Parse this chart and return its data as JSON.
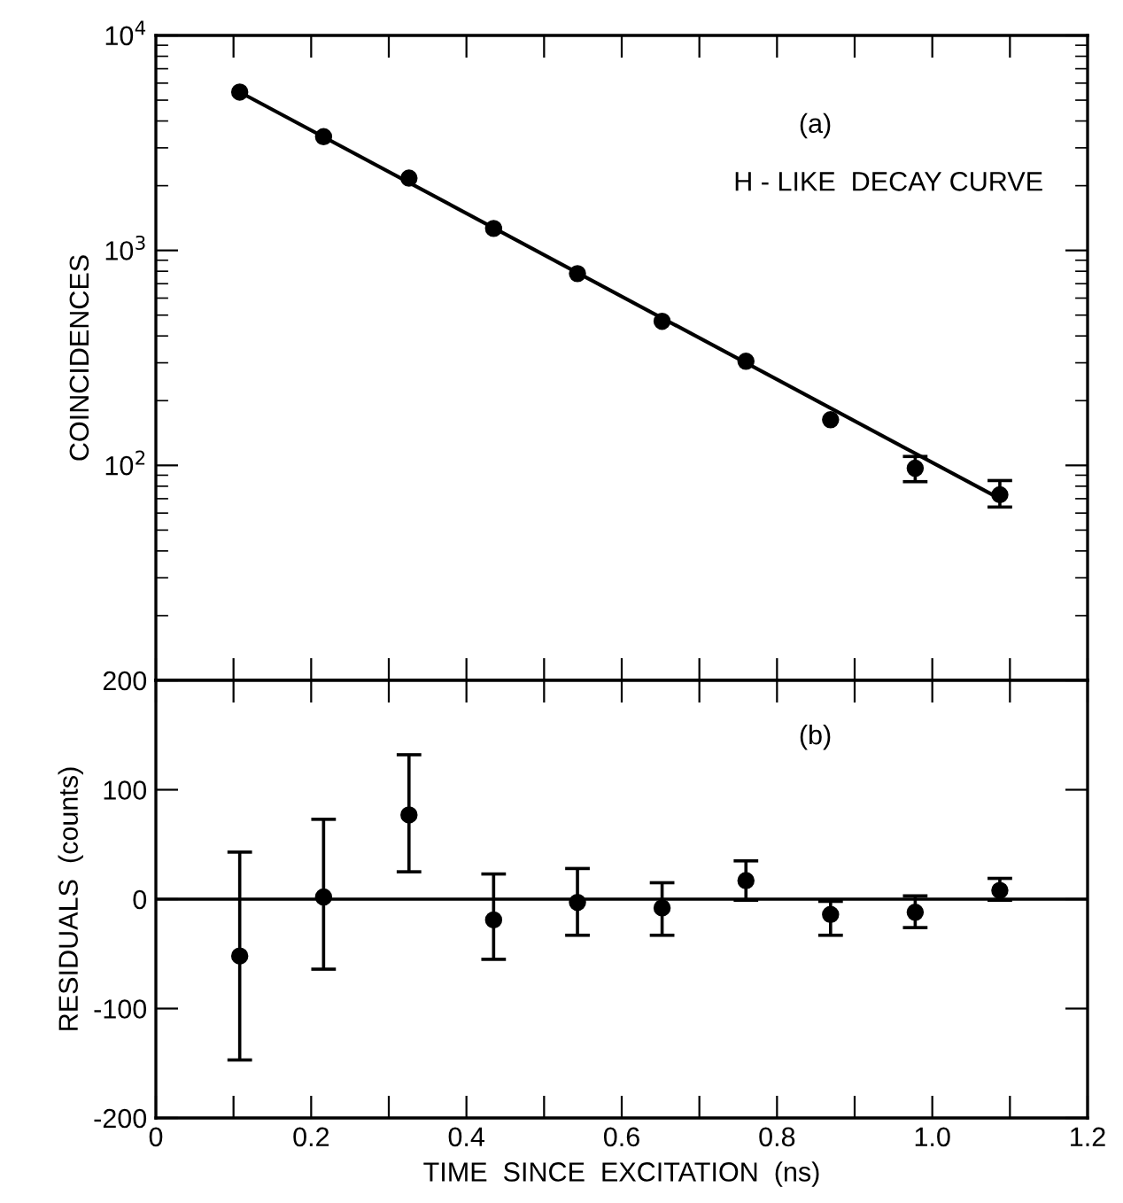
{
  "chart_data": [
    {
      "type": "scatter",
      "ylabel": "COINCIDENCES",
      "log": "y",
      "xlim": [
        0,
        1.2
      ],
      "ylim": [
        10,
        10000
      ],
      "xticks": [
        0,
        {
          "value": 0.1,
          "label": null
        },
        0.2,
        {
          "value": 0.3,
          "label": null
        },
        0.4,
        {
          "value": 0.5,
          "label": null
        },
        0.6,
        {
          "value": 0.7,
          "label": null
        },
        0.8,
        {
          "value": 0.9,
          "label": null
        },
        {
          "value": 1.0,
          "label": null
        },
        {
          "value": 1.1,
          "label": null
        },
        1.2
      ],
      "yticks": [
        {
          "value": 100,
          "label": "10$^{2}$"
        },
        {
          "value": 1000,
          "label": "10$^{3}$"
        },
        {
          "value": 10000,
          "label": "10$^{4}$"
        }
      ],
      "tick_labels": "y",
      "marker": "circle",
      "grid": false,
      "annotations": [
        "(a)",
        "H - LIKE  DECAY CURVE"
      ],
      "series": [
        {
          "color": "#000000",
          "x": [
            0.108,
            0.216,
            0.326,
            0.435,
            0.543,
            0.652,
            0.76,
            0.869,
            0.978,
            1.087
          ],
          "values": [
            5450,
            3380,
            2170,
            1265,
            780,
            468,
            305,
            163,
            97,
            73
          ],
          "errors": [
            null,
            null,
            null,
            null,
            null,
            null,
            null,
            null,
            [
              84,
              110
            ],
            [
              64,
              85
            ]
          ]
        },
        {
          "type": "line",
          "color": "#000000",
          "x": [
            0.108,
            1.087
          ],
          "values": [
            5450,
            70
          ],
          "marker": "none",
          "line_style": "solid"
        }
      ]
    },
    {
      "type": "scatter",
      "xlabel": "TIME  SINCE  EXCITATION  (ns)",
      "ylabel": "RESIDUALS  (counts)",
      "xlim": [
        0,
        1.2
      ],
      "ylim": [
        -200,
        200
      ],
      "xticks": [
        0,
        {
          "value": 0.1,
          "label": null
        },
        0.2,
        {
          "value": 0.3,
          "label": null
        },
        0.4,
        {
          "value": 0.5,
          "label": null
        },
        0.6,
        {
          "value": 0.7,
          "label": null
        },
        0.8,
        {
          "value": 0.9,
          "label": null
        },
        {
          "value": 1.0,
          "label": "1.0"
        },
        {
          "value": 1.1,
          "label": null
        },
        1.2
      ],
      "yticks": [
        -200,
        -100,
        0,
        100,
        200
      ],
      "marker": "circle",
      "grid": false,
      "annotations": [
        "(b)"
      ],
      "ref_lines": [
        {
          "axis": "y",
          "value": 0,
          "color": "#000000"
        }
      ],
      "series": [
        {
          "color": "#000000",
          "x": [
            0.108,
            0.216,
            0.326,
            0.435,
            0.543,
            0.652,
            0.76,
            0.869,
            0.978,
            1.087
          ],
          "values": [
            -52,
            2,
            77,
            -19,
            -3,
            -8,
            17,
            -14,
            -12,
            8
          ],
          "errors": [
            [
              -147,
              43
            ],
            [
              -64,
              73
            ],
            [
              25,
              132
            ],
            [
              -55,
              23
            ],
            [
              -33,
              28
            ],
            [
              -33,
              15
            ],
            [
              -1,
              35
            ],
            [
              -33,
              -2
            ],
            [
              -26,
              3
            ],
            [
              -1,
              19
            ]
          ]
        }
      ]
    }
  ]
}
